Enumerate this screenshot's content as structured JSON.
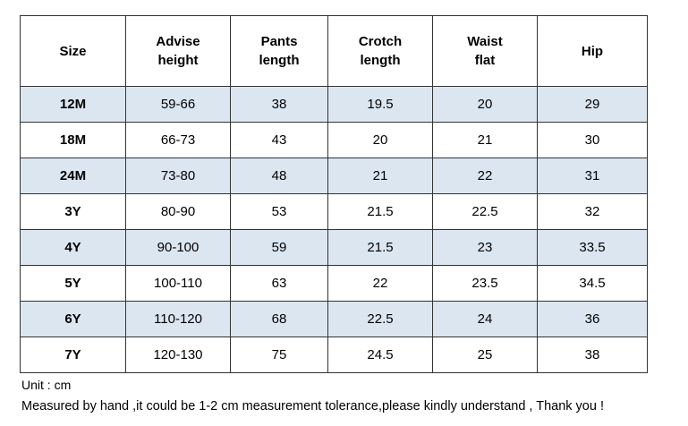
{
  "table": {
    "headers": [
      "Size",
      "Advise\nheight",
      "Pants\nlength",
      "Crotch\nlength",
      "Waist\nflat",
      "Hip"
    ],
    "rows": [
      [
        "12M",
        "59-66",
        "38",
        "19.5",
        "20",
        "29"
      ],
      [
        "18M",
        "66-73",
        "43",
        "20",
        "21",
        "30"
      ],
      [
        "24M",
        "73-80",
        "48",
        "21",
        "22",
        "31"
      ],
      [
        "3Y",
        "80-90",
        "53",
        "21.5",
        "22.5",
        "32"
      ],
      [
        "4Y",
        "90-100",
        "59",
        "21.5",
        "23",
        "33.5"
      ],
      [
        "5Y",
        "100-110",
        "63",
        "22",
        "23.5",
        "34.5"
      ],
      [
        "6Y",
        "110-120",
        "68",
        "22.5",
        "24",
        "36"
      ],
      [
        "7Y",
        "120-130",
        "75",
        "24.5",
        "25",
        "38"
      ]
    ],
    "shaded_color": "#dce6f1",
    "border_color": "#333333"
  },
  "notes": {
    "unit": "Unit : cm",
    "tolerance": "Measured by hand ,it could be 1-2 cm measurement tolerance,please kindly understand , Thank you !"
  }
}
